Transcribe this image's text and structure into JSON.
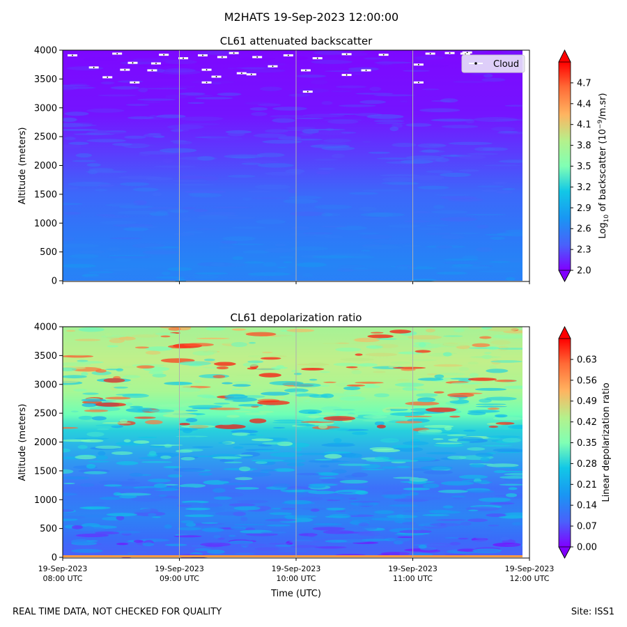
{
  "figure": {
    "suptitle": "M2HATS 19-Sep-2023 12:00:00",
    "footer_left": "REAL TIME DATA, NOT CHECKED FOR QUALITY",
    "footer_right": "Site: ISS1"
  },
  "chart_data": [
    {
      "type": "heatmap",
      "title": "CL61 attenuated backscatter",
      "ylabel": "Altitude (meters)",
      "xlabel": "",
      "ylim": [
        0,
        4000
      ],
      "yticks": [
        0,
        500,
        1000,
        1500,
        2000,
        2500,
        3000,
        3500,
        4000
      ],
      "xticks": [
        "08:00",
        "09:00",
        "10:00",
        "11:00",
        "12:00"
      ],
      "grid": "vertical",
      "colorbar": {
        "label_prefix": "Log",
        "label_sub": "10",
        "label_mid": " of backscatter (10",
        "label_sup": "−9",
        "label_suffix": "/m.sr)",
        "range": [
          2.0,
          5.0
        ],
        "ticks": [
          "2.0",
          "2.3",
          "2.6",
          "2.9",
          "3.2",
          "3.5",
          "3.8",
          "4.1",
          "4.4",
          "4.7"
        ],
        "extend": "both"
      },
      "legend": {
        "label": "Cloud",
        "placement": "top-right"
      },
      "profile_note": "values decrease with altitude: ~2.7 near ground to ~2.0 at 4000 m; sparse cloud markers above 3200 m",
      "cloud_markers": [
        {
          "time": "08:05",
          "alt": 3910
        },
        {
          "time": "08:16",
          "alt": 3700
        },
        {
          "time": "08:23",
          "alt": 3530
        },
        {
          "time": "08:28",
          "alt": 3940
        },
        {
          "time": "08:32",
          "alt": 3660
        },
        {
          "time": "08:36",
          "alt": 3780
        },
        {
          "time": "08:37",
          "alt": 3440
        },
        {
          "time": "08:46",
          "alt": 3650
        },
        {
          "time": "08:48",
          "alt": 3770
        },
        {
          "time": "08:52",
          "alt": 3920
        },
        {
          "time": "09:02",
          "alt": 3860
        },
        {
          "time": "09:12",
          "alt": 3910
        },
        {
          "time": "09:14",
          "alt": 3440
        },
        {
          "time": "09:14",
          "alt": 3660
        },
        {
          "time": "09:19",
          "alt": 3540
        },
        {
          "time": "09:22",
          "alt": 3880
        },
        {
          "time": "09:28",
          "alt": 3950
        },
        {
          "time": "09:32",
          "alt": 3600
        },
        {
          "time": "09:37",
          "alt": 3580
        },
        {
          "time": "09:40",
          "alt": 3880
        },
        {
          "time": "09:48",
          "alt": 3720
        },
        {
          "time": "09:56",
          "alt": 3910
        },
        {
          "time": "10:05",
          "alt": 3650
        },
        {
          "time": "10:06",
          "alt": 3280
        },
        {
          "time": "10:11",
          "alt": 3860
        },
        {
          "time": "10:26",
          "alt": 3930
        },
        {
          "time": "10:26",
          "alt": 3570
        },
        {
          "time": "10:36",
          "alt": 3650
        },
        {
          "time": "10:45",
          "alt": 3920
        },
        {
          "time": "11:03",
          "alt": 3750
        },
        {
          "time": "11:03",
          "alt": 3440
        },
        {
          "time": "11:09",
          "alt": 3940
        },
        {
          "time": "11:19",
          "alt": 3950
        },
        {
          "time": "11:27",
          "alt": 3940
        },
        {
          "time": "11:28",
          "alt": 3960
        }
      ]
    },
    {
      "type": "heatmap",
      "title": "CL61 depolarization ratio",
      "ylabel": "Altitude (meters)",
      "xlabel": "Time (UTC)",
      "ylim": [
        0,
        4000
      ],
      "yticks": [
        0,
        500,
        1000,
        1500,
        2000,
        2500,
        3000,
        3500,
        4000
      ],
      "xticks": [
        "08:00",
        "09:00",
        "10:00",
        "11:00",
        "12:00"
      ],
      "xtick_date": "19-Sep-2023",
      "xtick_labels": [
        {
          "date": "19-Sep-2023",
          "time": "08:00 UTC"
        },
        {
          "date": "19-Sep-2023",
          "time": "09:00 UTC"
        },
        {
          "date": "19-Sep-2023",
          "time": "10:00 UTC"
        },
        {
          "date": "19-Sep-2023",
          "time": "11:00 UTC"
        },
        {
          "date": "19-Sep-2023",
          "time": "12:00 UTC"
        }
      ],
      "grid": "vertical",
      "colorbar": {
        "label": "Linear depolarization ratio",
        "range": [
          0.0,
          0.7
        ],
        "ticks": [
          "0.00",
          "0.07",
          "0.14",
          "0.21",
          "0.28",
          "0.35",
          "0.42",
          "0.49",
          "0.56",
          "0.63"
        ],
        "extend": "both"
      },
      "profile_note": "values increase with altitude: ~0.12 near ground to ~0.45 at 4000 m with red patches above 2500 m"
    }
  ]
}
